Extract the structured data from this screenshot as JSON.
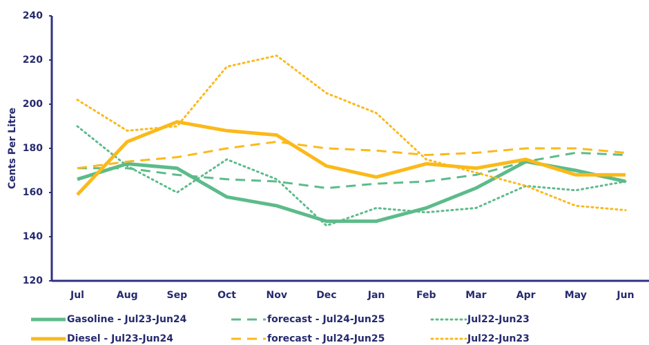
{
  "chart_data": {
    "type": "line",
    "y_label": "Cents Per Litre",
    "categories": [
      "Jul",
      "Aug",
      "Sep",
      "Oct",
      "Nov",
      "Dec",
      "Jan",
      "Feb",
      "Mar",
      "Apr",
      "May",
      "Jun"
    ],
    "ylim": [
      120,
      240
    ],
    "yticks": [
      120,
      140,
      160,
      180,
      200,
      220,
      240
    ],
    "legend": "bottom",
    "series": [
      {
        "name": "Gasoline - Jul23-Jun24",
        "color": "#5cbb8a",
        "style": "solid",
        "values": [
          166,
          173,
          171,
          158,
          154,
          147,
          147,
          153,
          162,
          174,
          170,
          165
        ]
      },
      {
        "name": "forecast - Jul24-Jun25",
        "color": "#5cbb8a",
        "style": "dashed",
        "values": [
          171,
          171,
          168,
          166,
          165,
          162,
          164,
          165,
          168,
          174,
          178,
          177
        ]
      },
      {
        "name": "Jul22-Jun23",
        "color": "#5cbb8a",
        "style": "dotted",
        "values": [
          190,
          172,
          160,
          175,
          166,
          145,
          153,
          151,
          153,
          163,
          161,
          165
        ]
      },
      {
        "name": "Diesel - Jul23-Jun24",
        "color": "#fbb91a",
        "style": "solid",
        "values": [
          159,
          183,
          192,
          188,
          186,
          172,
          167,
          173,
          171,
          175,
          168,
          168
        ]
      },
      {
        "name": "forecast - Jul24-Jun25",
        "color": "#fbb91a",
        "style": "dashed",
        "values": [
          171,
          174,
          176,
          180,
          183,
          180,
          179,
          177,
          178,
          180,
          180,
          178
        ]
      },
      {
        "name": "Jul22-Jun23",
        "color": "#fbb91a",
        "style": "dotted",
        "values": [
          202,
          188,
          190,
          217,
          222,
          205,
          196,
          175,
          169,
          163,
          154,
          152
        ]
      }
    ]
  }
}
